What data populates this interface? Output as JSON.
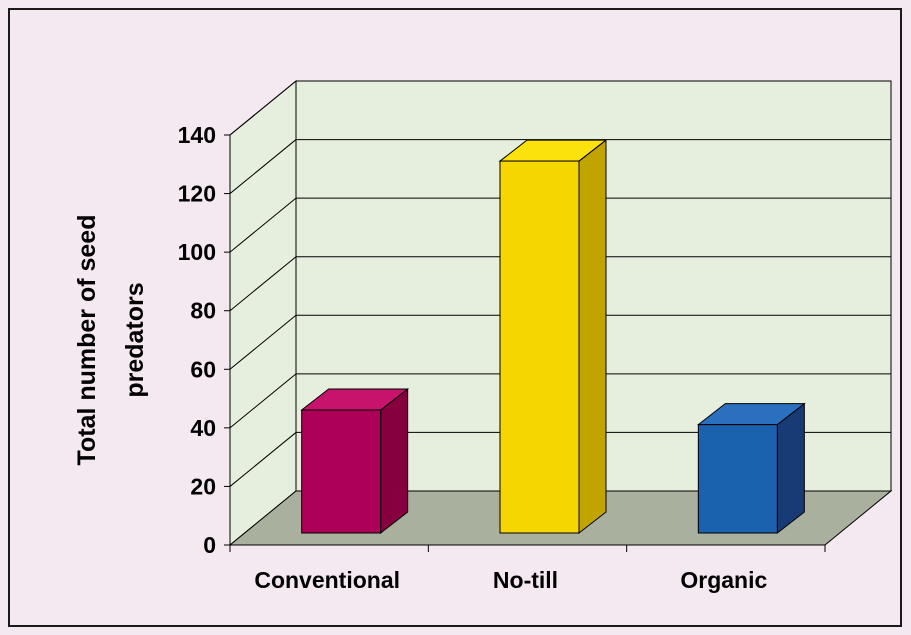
{
  "chart_data": {
    "type": "bar",
    "categories": [
      "Conventional",
      "No-till",
      "Organic"
    ],
    "values": [
      42,
      127,
      37
    ],
    "ylabel_lines": [
      "Total number of seed",
      "predators"
    ],
    "xlabel": "",
    "ylim": [
      0,
      140
    ],
    "yticks": [
      0,
      20,
      40,
      60,
      80,
      100,
      120,
      140
    ],
    "three_d": true,
    "grid": true,
    "colors": {
      "page_background": "#f4e8f1",
      "wall": "#e6efdd",
      "floor": "#a9b09e",
      "bars": [
        {
          "front": "#ad0058",
          "top": "#c8136c",
          "side": "#86003f"
        },
        {
          "front": "#f6d600",
          "top": "#fbe20c",
          "side": "#c2a400"
        },
        {
          "front": "#1a62ad",
          "top": "#2a70bf",
          "side": "#163b75"
        }
      ]
    }
  }
}
